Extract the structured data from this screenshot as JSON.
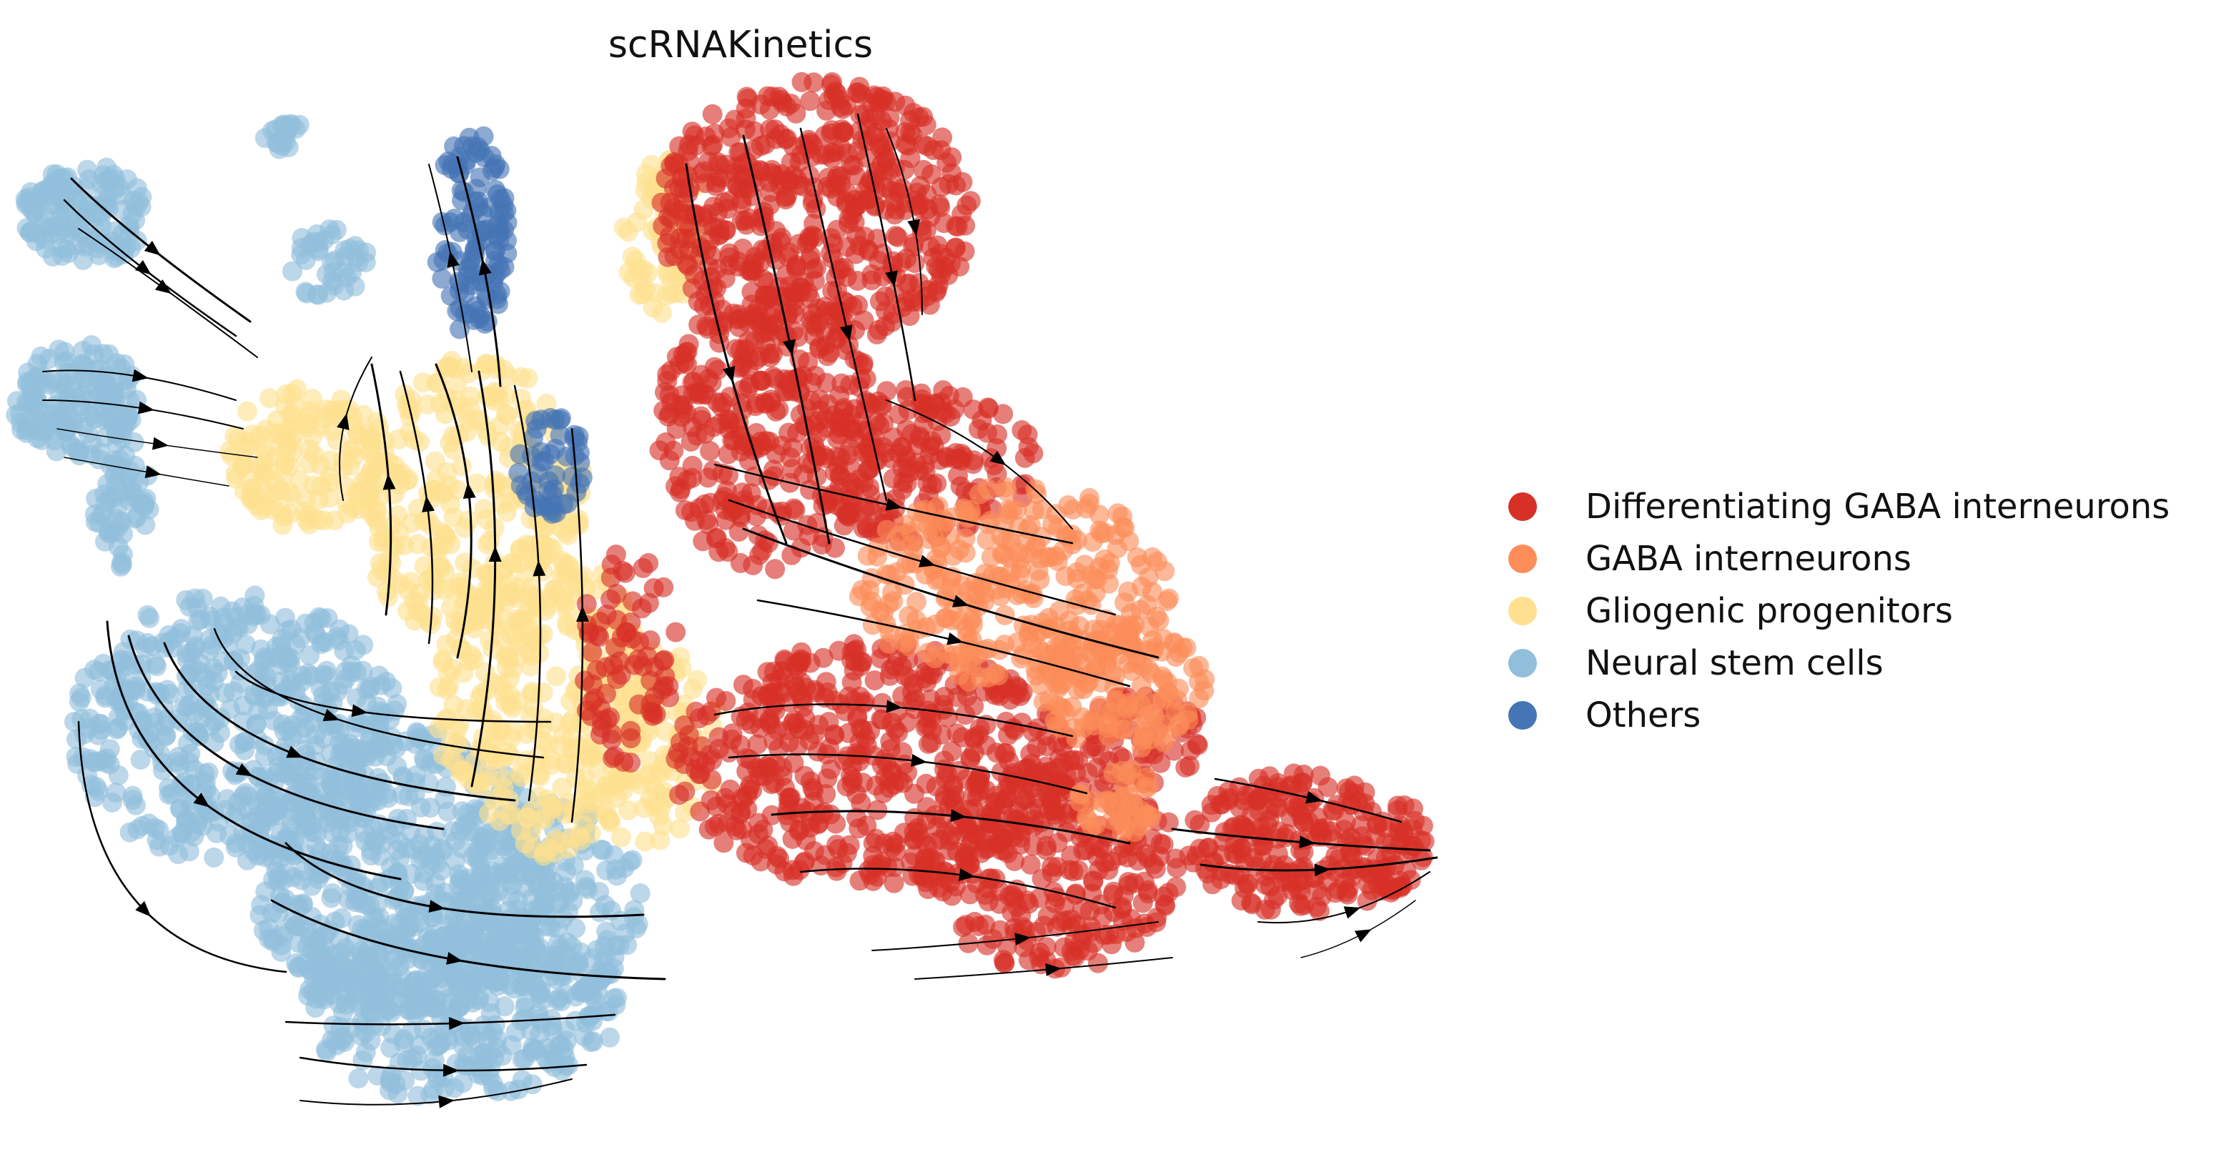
{
  "chart_data": {
    "type": "scatter",
    "title": "scRNAKinetics",
    "xlabel": "",
    "ylabel": "",
    "axes_visible": false,
    "overlay": "velocity streamlines with arrowheads",
    "legend_position": "right",
    "legend": [
      {
        "name": "Differentiating GABA interneurons",
        "color": "#d73027"
      },
      {
        "name": "GABA interneurons",
        "color": "#fc8d59"
      },
      {
        "name": "Gliogenic progenitors",
        "color": "#fee090"
      },
      {
        "name": "Neural stem cells",
        "color": "#91bfdb"
      },
      {
        "name": "Others",
        "color": "#4575b4"
      }
    ]
  }
}
